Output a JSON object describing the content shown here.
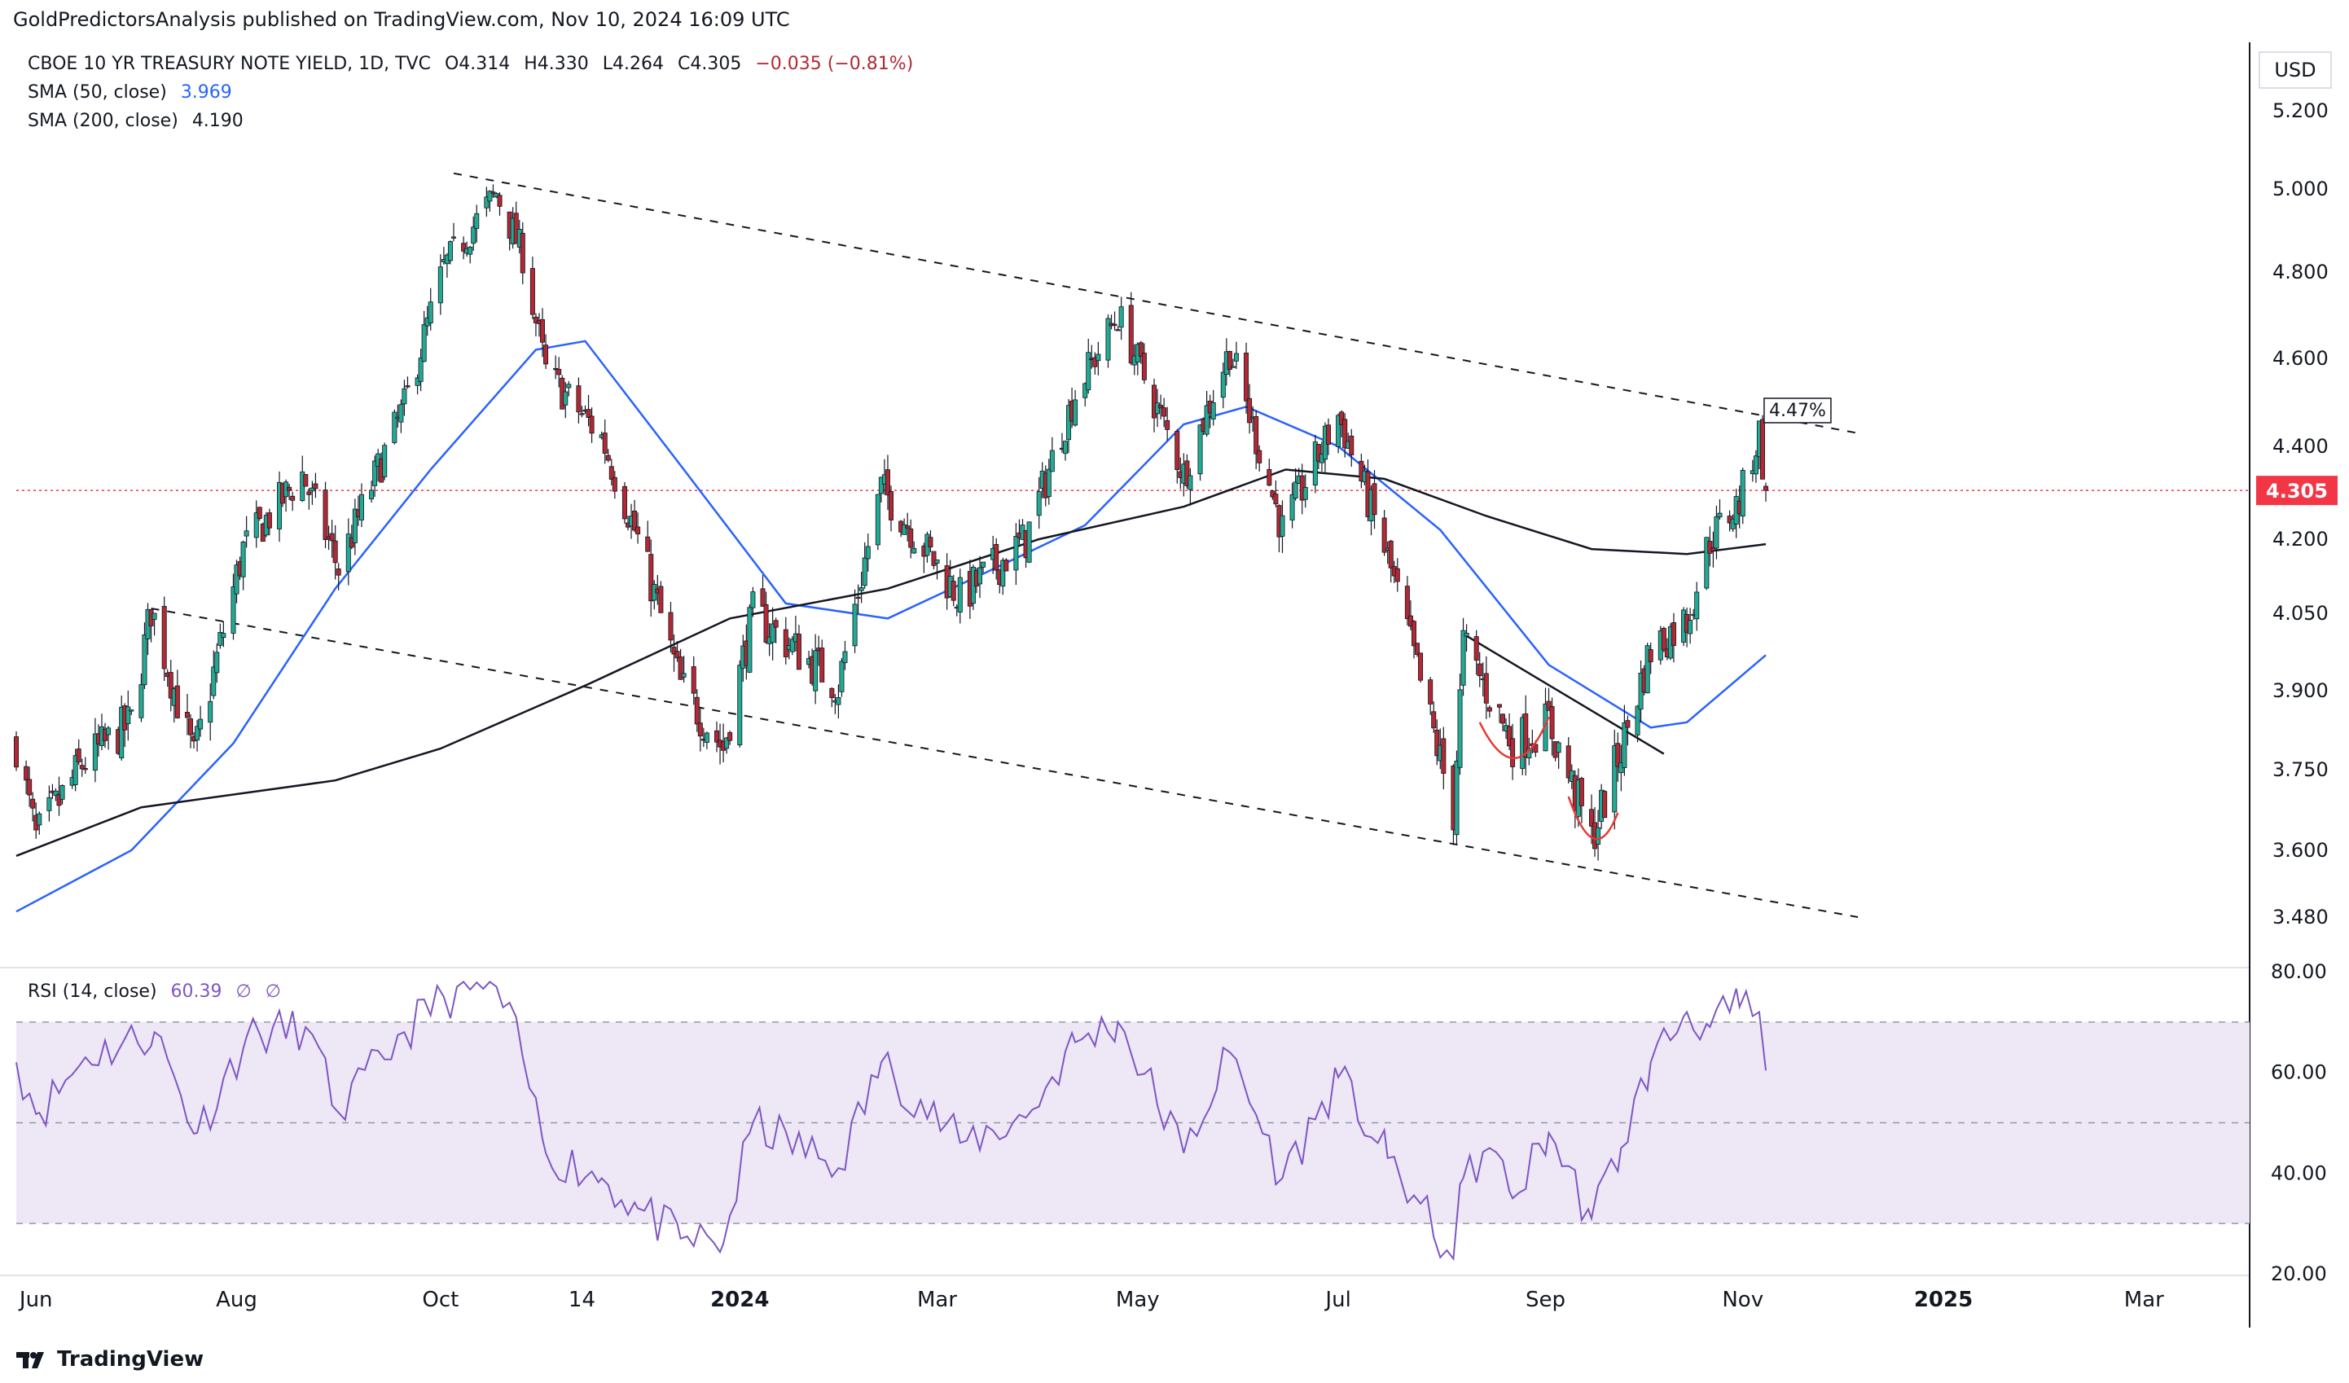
{
  "header": {
    "publish_line": "GoldPredictorsAnalysis published on TradingView.com, Nov 10, 2024 16:09 UTC"
  },
  "legend": {
    "symbol": "CBOE 10 YR TREASURY NOTE YIELD, 1D, TVC",
    "open": "O4.314",
    "high": "H4.330",
    "low": "L4.264",
    "close": "C4.305",
    "change": "−0.035 (−0.81%)",
    "sma50_label": "SMA (50, close)",
    "sma50_value": "3.969",
    "sma200_label": "SMA (200, close)",
    "sma200_value": "4.190",
    "rsi_label": "RSI (14, close)",
    "rsi_value": "60.39",
    "rsi_extra1": "∅",
    "rsi_extra2": "∅"
  },
  "footer": {
    "brand": "TradingView"
  },
  "colors": {
    "up": "#22ab94",
    "down": "#b22833",
    "sma50": "#2962ff",
    "sma200": "#131722",
    "rsi": "#7e57c2",
    "rsi_band": "#ede7f6",
    "last_price": "#f23645"
  },
  "chart_data": [
    {
      "type": "candlestick",
      "currency_label": "USD",
      "y_axis_ticks": [
        "5.200",
        "5.000",
        "4.800",
        "4.600",
        "4.400",
        "4.200",
        "4.050",
        "3.900",
        "3.750",
        "3.600",
        "3.480"
      ],
      "x_axis_ticks": [
        "Jun",
        "Aug",
        "Oct",
        "14",
        "2024",
        "Mar",
        "May",
        "Jul",
        "Sep",
        "Nov",
        "2025",
        "Mar"
      ],
      "last_close": "4.305",
      "annotation_label": "4.47%",
      "date_range": [
        "2023-05-26",
        "2024-11-08"
      ],
      "price_path": [
        {
          "date": "2023-05-26",
          "value": 3.8
        },
        {
          "date": "2023-06-01",
          "value": 3.62
        },
        {
          "date": "2023-06-15",
          "value": 3.76
        },
        {
          "date": "2023-06-30",
          "value": 3.84
        },
        {
          "date": "2023-07-06",
          "value": 4.06
        },
        {
          "date": "2023-07-19",
          "value": 3.77
        },
        {
          "date": "2023-08-03",
          "value": 4.18
        },
        {
          "date": "2023-08-21",
          "value": 4.34
        },
        {
          "date": "2023-09-01",
          "value": 4.14
        },
        {
          "date": "2023-09-21",
          "value": 4.49
        },
        {
          "date": "2023-10-03",
          "value": 4.81
        },
        {
          "date": "2023-10-19",
          "value": 4.99
        },
        {
          "date": "2023-10-27",
          "value": 4.84
        },
        {
          "date": "2023-11-03",
          "value": 4.57
        },
        {
          "date": "2023-11-20",
          "value": 4.42
        },
        {
          "date": "2023-12-01",
          "value": 4.2
        },
        {
          "date": "2023-12-14",
          "value": 3.91
        },
        {
          "date": "2023-12-27",
          "value": 3.79
        },
        {
          "date": "2024-01-05",
          "value": 4.05
        },
        {
          "date": "2024-01-31",
          "value": 3.91
        },
        {
          "date": "2024-02-13",
          "value": 4.31
        },
        {
          "date": "2024-03-08",
          "value": 4.08
        },
        {
          "date": "2024-03-28",
          "value": 4.2
        },
        {
          "date": "2024-04-12",
          "value": 4.52
        },
        {
          "date": "2024-04-25",
          "value": 4.7
        },
        {
          "date": "2024-05-15",
          "value": 4.34
        },
        {
          "date": "2024-05-29",
          "value": 4.62
        },
        {
          "date": "2024-06-14",
          "value": 4.22
        },
        {
          "date": "2024-07-01",
          "value": 4.47
        },
        {
          "date": "2024-07-16",
          "value": 4.16
        },
        {
          "date": "2024-08-05",
          "value": 3.67
        },
        {
          "date": "2024-08-08",
          "value": 3.99
        },
        {
          "date": "2024-08-16",
          "value": 3.89
        },
        {
          "date": "2024-08-23",
          "value": 3.8
        },
        {
          "date": "2024-09-03",
          "value": 3.84
        },
        {
          "date": "2024-09-16",
          "value": 3.62
        },
        {
          "date": "2024-09-25",
          "value": 3.79
        },
        {
          "date": "2024-10-04",
          "value": 3.98
        },
        {
          "date": "2024-10-15",
          "value": 4.04
        },
        {
          "date": "2024-10-22",
          "value": 4.2
        },
        {
          "date": "2024-10-31",
          "value": 4.28
        },
        {
          "date": "2024-11-06",
          "value": 4.43
        },
        {
          "date": "2024-11-08",
          "value": 4.305
        }
      ],
      "series": [
        {
          "name": "SMA (50, close)",
          "final_value": 3.969,
          "points": [
            [
              "2023-05-26",
              3.49
            ],
            [
              "2023-06-30",
              3.6
            ],
            [
              "2023-07-31",
              3.8
            ],
            [
              "2023-08-31",
              4.1
            ],
            [
              "2023-09-29",
              4.35
            ],
            [
              "2023-10-31",
              4.62
            ],
            [
              "2023-11-15",
              4.64
            ],
            [
              "2023-12-15",
              4.35
            ],
            [
              "2024-01-15",
              4.07
            ],
            [
              "2024-02-15",
              4.04
            ],
            [
              "2024-03-15",
              4.13
            ],
            [
              "2024-04-15",
              4.23
            ],
            [
              "2024-05-15",
              4.45
            ],
            [
              "2024-06-03",
              4.49
            ],
            [
              "2024-07-01",
              4.4
            ],
            [
              "2024-08-01",
              4.22
            ],
            [
              "2024-09-03",
              3.95
            ],
            [
              "2024-10-04",
              3.83
            ],
            [
              "2024-10-15",
              3.84
            ],
            [
              "2024-11-08",
              3.969
            ]
          ]
        },
        {
          "name": "SMA (200, close)",
          "final_value": 4.19,
          "points": [
            [
              "2023-05-26",
              3.59
            ],
            [
              "2023-07-03",
              3.68
            ],
            [
              "2023-08-31",
              3.73
            ],
            [
              "2023-10-02",
              3.79
            ],
            [
              "2023-11-15",
              3.91
            ],
            [
              "2023-12-29",
              4.04
            ],
            [
              "2024-02-15",
              4.1
            ],
            [
              "2024-04-01",
              4.2
            ],
            [
              "2024-05-15",
              4.27
            ],
            [
              "2024-06-15",
              4.35
            ],
            [
              "2024-07-15",
              4.33
            ],
            [
              "2024-08-15",
              4.25
            ],
            [
              "2024-09-16",
              4.18
            ],
            [
              "2024-10-15",
              4.17
            ],
            [
              "2024-11-08",
              4.19
            ]
          ]
        }
      ],
      "trendlines": [
        {
          "from": [
            "2023-10-06",
            5.04
          ],
          "to": [
            "2024-12-06",
            4.43
          ],
          "style": "dashed"
        },
        {
          "from": [
            "2023-07-06",
            4.06
          ],
          "to": [
            "2024-12-06",
            3.48
          ],
          "style": "dashed"
        },
        {
          "from": [
            "2024-08-08",
            4.01
          ],
          "to": [
            "2024-10-08",
            3.78
          ],
          "style": "solid"
        }
      ]
    },
    {
      "type": "line",
      "title": "RSI (14, close)",
      "y_axis_ticks": [
        "80.00",
        "60.00",
        "40.00",
        "20.00"
      ],
      "band": [
        30,
        70
      ],
      "midline": 50,
      "values": [
        {
          "date": "2023-05-26",
          "value": 62
        },
        {
          "date": "2023-06-02",
          "value": 52
        },
        {
          "date": "2023-06-16",
          "value": 63
        },
        {
          "date": "2023-07-07",
          "value": 68
        },
        {
          "date": "2023-07-20",
          "value": 48
        },
        {
          "date": "2023-08-04",
          "value": 67
        },
        {
          "date": "2023-08-22",
          "value": 69
        },
        {
          "date": "2023-09-01",
          "value": 52
        },
        {
          "date": "2023-09-21",
          "value": 68
        },
        {
          "date": "2023-10-03",
          "value": 75
        },
        {
          "date": "2023-10-19",
          "value": 77
        },
        {
          "date": "2023-10-27",
          "value": 63
        },
        {
          "date": "2023-11-03",
          "value": 44
        },
        {
          "date": "2023-11-20",
          "value": 39
        },
        {
          "date": "2023-12-01",
          "value": 33
        },
        {
          "date": "2023-12-14",
          "value": 27
        },
        {
          "date": "2023-12-27",
          "value": 26
        },
        {
          "date": "2024-01-05",
          "value": 50
        },
        {
          "date": "2024-01-31",
          "value": 41
        },
        {
          "date": "2024-02-13",
          "value": 62
        },
        {
          "date": "2024-03-08",
          "value": 46
        },
        {
          "date": "2024-03-28",
          "value": 51
        },
        {
          "date": "2024-04-12",
          "value": 66
        },
        {
          "date": "2024-04-25",
          "value": 70
        },
        {
          "date": "2024-05-15",
          "value": 44
        },
        {
          "date": "2024-05-29",
          "value": 64
        },
        {
          "date": "2024-06-14",
          "value": 39
        },
        {
          "date": "2024-07-01",
          "value": 59
        },
        {
          "date": "2024-07-16",
          "value": 43
        },
        {
          "date": "2024-08-05",
          "value": 23
        },
        {
          "date": "2024-08-08",
          "value": 39
        },
        {
          "date": "2024-08-16",
          "value": 45
        },
        {
          "date": "2024-08-23",
          "value": 35
        },
        {
          "date": "2024-09-03",
          "value": 48
        },
        {
          "date": "2024-09-16",
          "value": 31
        },
        {
          "date": "2024-09-25",
          "value": 45
        },
        {
          "date": "2024-10-04",
          "value": 62
        },
        {
          "date": "2024-10-15",
          "value": 72
        },
        {
          "date": "2024-10-22",
          "value": 69
        },
        {
          "date": "2024-10-31",
          "value": 73
        },
        {
          "date": "2024-11-06",
          "value": 72
        },
        {
          "date": "2024-11-08",
          "value": 60.39
        }
      ]
    }
  ]
}
